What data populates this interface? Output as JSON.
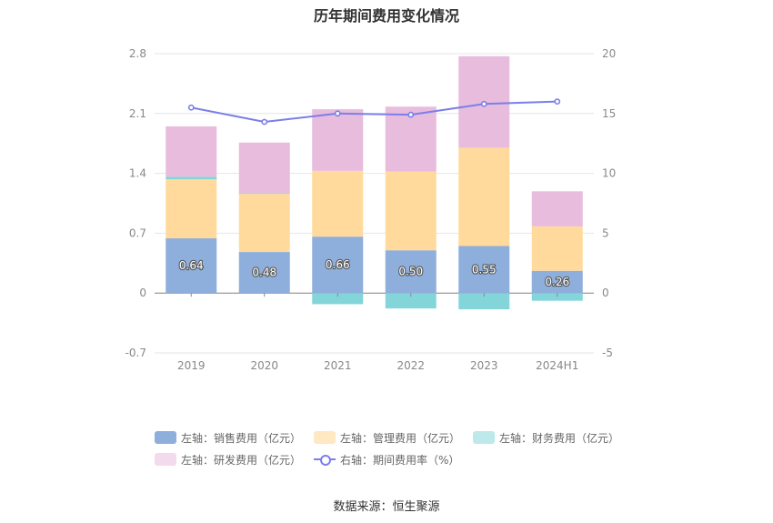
{
  "title": "历年期间费用变化情况",
  "source": "数据来源：恒生聚源",
  "legend": [
    {
      "label": "左轴：销售费用（亿元）",
      "color": "#8EAEDC"
    },
    {
      "label": "左轴：管理费用（亿元）",
      "color": "#FFDA9C"
    },
    {
      "label": "左轴：财务费用（亿元）",
      "color": "#84D5D9"
    },
    {
      "label": "左轴：研发费用（亿元）",
      "color": "#E8BCDC"
    },
    {
      "label": "右轴：期间费用率（%）",
      "color": "#7B7FE8"
    }
  ],
  "chart_data": {
    "type": "bar",
    "categories": [
      "2019",
      "2020",
      "2021",
      "2022",
      "2023",
      "2024H1"
    ],
    "series": [
      {
        "name": "左轴：销售费用（亿元）",
        "axis": "left",
        "color": "#8EAEDC",
        "values": [
          0.64,
          0.48,
          0.66,
          0.5,
          0.55,
          0.26
        ],
        "labels": [
          "0.64",
          "0.48",
          "0.66",
          "0.50",
          "0.55",
          "0.26"
        ]
      },
      {
        "name": "左轴：管理费用（亿元）",
        "axis": "left",
        "color": "#FFDA9C",
        "values": [
          0.69,
          0.68,
          0.77,
          0.92,
          1.15,
          0.52
        ]
      },
      {
        "name": "左轴：财务费用（亿元）",
        "axis": "left",
        "color": "#84D5D9",
        "values": [
          0.03,
          0.01,
          -0.13,
          -0.18,
          -0.19,
          -0.09
        ]
      },
      {
        "name": "左轴：研发费用（亿元）",
        "axis": "left",
        "color": "#E8BCDC",
        "values": [
          0.59,
          0.59,
          0.72,
          0.76,
          1.07,
          0.41
        ]
      },
      {
        "name": "右轴：期间费用率（%）",
        "axis": "right",
        "type": "line",
        "color": "#7B7FE8",
        "values": [
          15.5,
          14.3,
          15.0,
          14.9,
          15.8,
          16.0
        ]
      }
    ],
    "left_axis": {
      "min": -0.7,
      "max": 2.8,
      "ticks": [
        "-0.7",
        "0",
        "0.7",
        "1.4",
        "2.1",
        "2.8"
      ]
    },
    "right_axis": {
      "min": -5,
      "max": 20,
      "ticks": [
        "-5",
        "0",
        "5",
        "10",
        "15",
        "20"
      ]
    },
    "grid": true
  }
}
